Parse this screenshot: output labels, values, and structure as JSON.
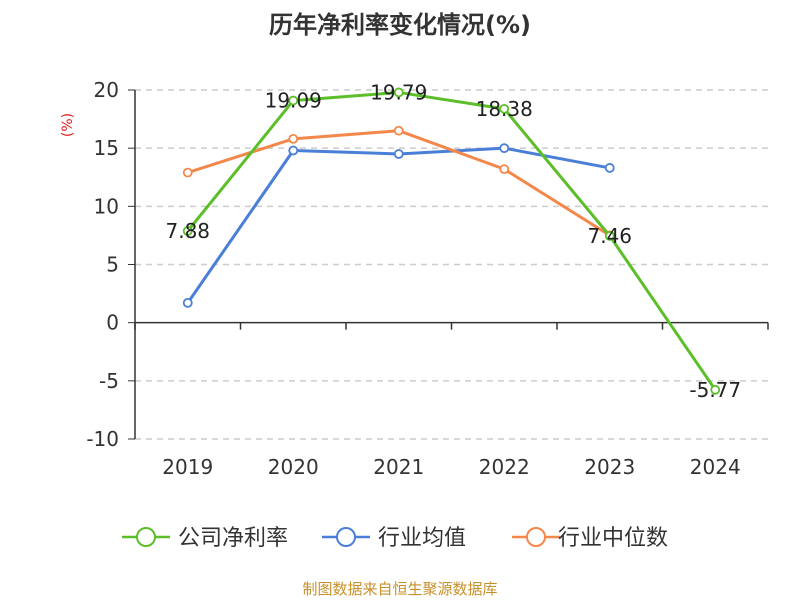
{
  "chart_data": {
    "type": "line",
    "title": "历年净利率变化情况(%)",
    "ylabel": "(%)",
    "categories": [
      "2019",
      "2020",
      "2021",
      "2022",
      "2023",
      "2024"
    ],
    "ylim": [
      -10,
      20
    ],
    "yticks": [
      "-10",
      "-5",
      "0",
      "5",
      "10",
      "15",
      "20"
    ],
    "grid": true,
    "legend_position": "bottom",
    "series": [
      {
        "name": "公司净利率",
        "color": "#5cbf2a",
        "values": [
          7.88,
          19.09,
          19.79,
          18.38,
          7.46,
          -5.77
        ],
        "labels": [
          "7.88",
          "19.09",
          "19.79",
          "18.38",
          "7.46",
          "-5.77"
        ]
      },
      {
        "name": "行业均值",
        "color": "#4a7fd8",
        "values": [
          1.7,
          14.8,
          14.5,
          15.0,
          13.3,
          null
        ]
      },
      {
        "name": "行业中位数",
        "color": "#f4874a",
        "values": [
          12.9,
          15.8,
          16.5,
          13.2,
          7.5,
          null
        ]
      }
    ]
  },
  "source": "制图数据来自恒生聚源数据库"
}
